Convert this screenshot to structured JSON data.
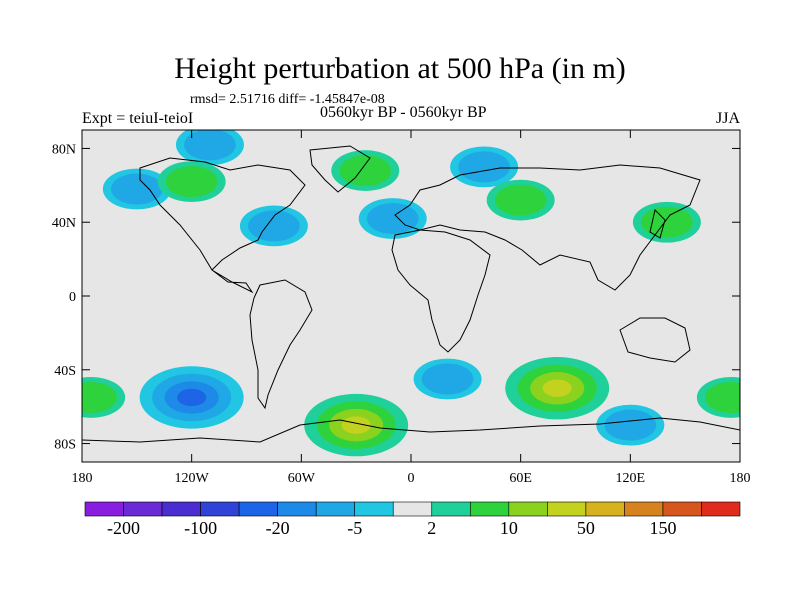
{
  "title": "Height perturbation at 500 hPa (in m)",
  "stats": "rmsd= 2.51716 diff= -1.45847e-08",
  "experiment": "Expt = teiuI-teioI",
  "period": "0560kyr BP - 0560kyr BP",
  "season": "JJA",
  "lat_ticks": [
    {
      "label": "80N",
      "lat": 80
    },
    {
      "label": "40N",
      "lat": 40
    },
    {
      "label": "0",
      "lat": 0
    },
    {
      "label": "40S",
      "lat": -40
    },
    {
      "label": "80S",
      "lat": -80
    }
  ],
  "lon_ticks": [
    {
      "label": "180",
      "lon": -180
    },
    {
      "label": "120W",
      "lon": -120
    },
    {
      "label": "60W",
      "lon": -60
    },
    {
      "label": "0",
      "lon": 0
    },
    {
      "label": "60E",
      "lon": 60
    },
    {
      "label": "120E",
      "lon": 120
    },
    {
      "label": "180",
      "lon": 180
    }
  ],
  "colorbar": {
    "colors": [
      "#8a1ee0",
      "#6a2ad6",
      "#4a2ed0",
      "#2f43d6",
      "#1e64e6",
      "#1e8ae8",
      "#20a8e6",
      "#20c6e2",
      "#e6e6e6",
      "#20d09a",
      "#2ed23c",
      "#8ad21e",
      "#c2d21e",
      "#d6b21e",
      "#d6821e",
      "#d6561e",
      "#e02a1e"
    ],
    "labels": [
      {
        "text": "-200",
        "after_box": 1
      },
      {
        "text": "-100",
        "after_box": 3
      },
      {
        "text": "-20",
        "after_box": 5
      },
      {
        "text": "-5",
        "after_box": 7
      },
      {
        "text": "2",
        "after_box": 9
      },
      {
        "text": "10",
        "after_box": 11
      },
      {
        "text": "50",
        "after_box": 13
      },
      {
        "text": "150",
        "after_box": 15
      }
    ]
  },
  "anomalies": [
    {
      "name": "north-atlantic-positive",
      "lon": -25,
      "lat": 68,
      "level": "pos"
    },
    {
      "name": "arctic-canada-negative",
      "lon": -110,
      "lat": 82,
      "level": "neg"
    },
    {
      "name": "alaska-negative",
      "lon": -150,
      "lat": 58,
      "level": "neg"
    },
    {
      "name": "north-pacific-positive",
      "lon": -120,
      "lat": 62,
      "level": "pos"
    },
    {
      "name": "us-east-negative",
      "lon": -75,
      "lat": 38,
      "level": "neg"
    },
    {
      "name": "europe-negative",
      "lon": -10,
      "lat": 42,
      "level": "neg"
    },
    {
      "name": "siberia-negative",
      "lon": 40,
      "lat": 70,
      "level": "neg"
    },
    {
      "name": "central-asia-positive",
      "lon": 60,
      "lat": 52,
      "level": "pos"
    },
    {
      "name": "east-asia-positive",
      "lon": 140,
      "lat": 40,
      "level": "pos"
    },
    {
      "name": "south-pacific-negative",
      "lon": -120,
      "lat": -55,
      "level": "neg-strong"
    },
    {
      "name": "antarctic-atlantic-positive",
      "lon": -30,
      "lat": -70,
      "level": "pos-strong"
    },
    {
      "name": "south-atlantic-negative",
      "lon": 20,
      "lat": -45,
      "level": "neg"
    },
    {
      "name": "indian-ocean-positive",
      "lon": 80,
      "lat": -50,
      "level": "pos-strong"
    },
    {
      "name": "southern-ocean-negative",
      "lon": 120,
      "lat": -70,
      "level": "neg"
    },
    {
      "name": "sw-pacific-positive",
      "lon": 175,
      "lat": -55,
      "level": "pos"
    },
    {
      "name": "dateline-positive",
      "lon": -175,
      "lat": -55,
      "level": "pos"
    }
  ]
}
